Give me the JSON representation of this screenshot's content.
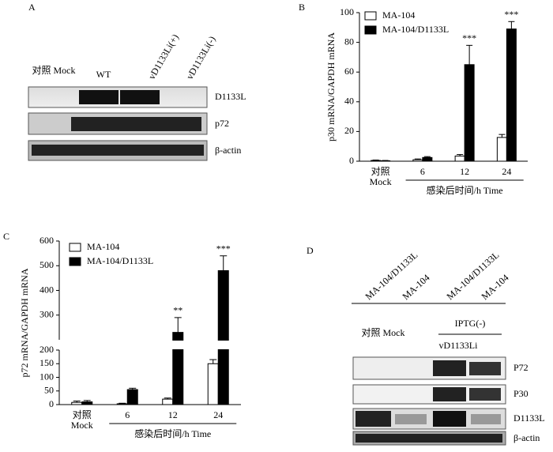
{
  "panel_labels": [
    "A",
    "B",
    "C",
    "D"
  ],
  "blot_a": {
    "lanes": [
      "对照 Mock",
      "WT",
      "vD1133Li(+)",
      "vD1133Li(-)"
    ],
    "bands": [
      "D1133L",
      "p72",
      "β-actin"
    ]
  },
  "blot_d": {
    "lanes": [
      "MA-104/D1133L",
      "MA-104",
      "MA-104/D1133L",
      "MA-104"
    ],
    "group_mock": "对照 Mock",
    "group_iptg": "IPTG(-)",
    "group_virus": "vD1133Li",
    "bands": [
      "P72",
      "P30",
      "D1133L",
      "β-actin"
    ]
  },
  "chart_data": [
    {
      "type": "bar",
      "y_label": "p30 mRNA/GAPDH mRNA",
      "x_label": "感染后时间/h  Time",
      "categories": [
        "对照 Mock",
        "6",
        "12",
        "24"
      ],
      "series": [
        {
          "name": "MA-104",
          "color": "#ffffff",
          "values": [
            0.5,
            1,
            3.5,
            16
          ],
          "errors": [
            0.3,
            0.5,
            1,
            2
          ]
        },
        {
          "name": "MA-104/D1133L",
          "color": "#000000",
          "values": [
            0.3,
            2.5,
            65,
            89
          ],
          "errors": [
            0.2,
            0.6,
            13,
            5
          ],
          "significance": [
            null,
            null,
            "***",
            "***"
          ]
        }
      ],
      "ylim": [
        0,
        100
      ],
      "yticks": [
        0,
        20,
        40,
        60,
        80,
        100
      ],
      "legend": "upper-left"
    },
    {
      "type": "bar",
      "y_label": "p72 mRNA/GAPDH mRNA",
      "x_label": "感染后时间/h  Time",
      "categories": [
        "对照 Mock",
        "6",
        "12",
        "24"
      ],
      "series": [
        {
          "name": "MA-104",
          "color": "#ffffff",
          "values": [
            8,
            3,
            20,
            150
          ],
          "errors": [
            5,
            2,
            4,
            15
          ]
        },
        {
          "name": "MA-104/D1133L",
          "color": "#000000",
          "values": [
            10,
            55,
            230,
            480
          ],
          "errors": [
            5,
            5,
            60,
            60
          ],
          "significance": [
            null,
            null,
            "**",
            "***"
          ]
        }
      ],
      "ylim": [
        0,
        600
      ],
      "ybreak": 200,
      "yticks": [
        0,
        50,
        100,
        150,
        200,
        300,
        400,
        500,
        600
      ],
      "legend": "upper-left"
    }
  ]
}
